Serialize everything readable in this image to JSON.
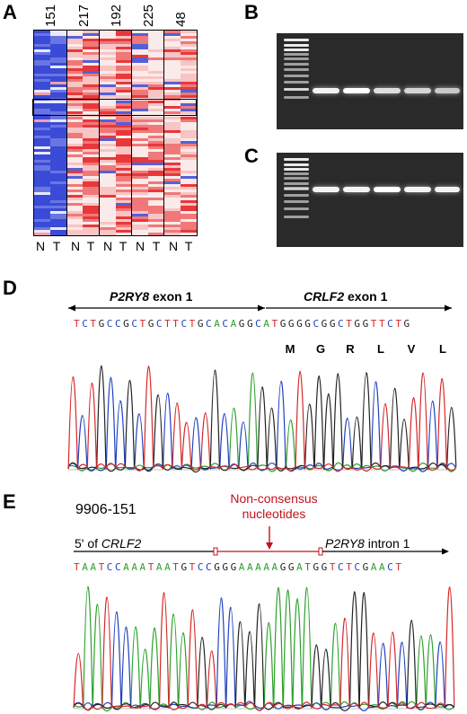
{
  "panels": {
    "A": {
      "letter": "A",
      "samples": [
        "151",
        "217",
        "192",
        "225",
        "48"
      ],
      "lane_labels": [
        "N",
        "T",
        "N",
        "T",
        "N",
        "T",
        "N",
        "T",
        "N",
        "T"
      ]
    },
    "B": {
      "letter": "B"
    },
    "C": {
      "letter": "C"
    },
    "D": {
      "letter": "D",
      "left_gene": "P2RY8",
      "left_region": " exon 1",
      "right_gene": "CRLF2",
      "right_region": " exon 1",
      "sequence": "TCTGCCGCTGCTTCTGCACAGGCATGGGGCGGCTGGTTCTG",
      "amino_acids": [
        "M",
        "G",
        "R",
        "L",
        "V",
        "L"
      ]
    },
    "E": {
      "letter": "E",
      "sample_id": "9906-151",
      "left_prefix": "5' of ",
      "left_gene": "CRLF2",
      "annotation_line1": "Non-consensus",
      "annotation_line2": "nucleotides",
      "right_gene": "P2RY8",
      "right_region": " intron 1",
      "sequence": "TAATCCAAATAATGTCCGGGAAAAAGGATGGTCTCGAACT"
    }
  },
  "colors": {
    "base_A": "#2ca02c",
    "base_C": "#1f3fbf",
    "base_G": "#222222",
    "base_T": "#d62728",
    "annotation": "#c0141c",
    "heatmap_low": "#3a4bd8",
    "heatmap_high": "#e8383a"
  }
}
